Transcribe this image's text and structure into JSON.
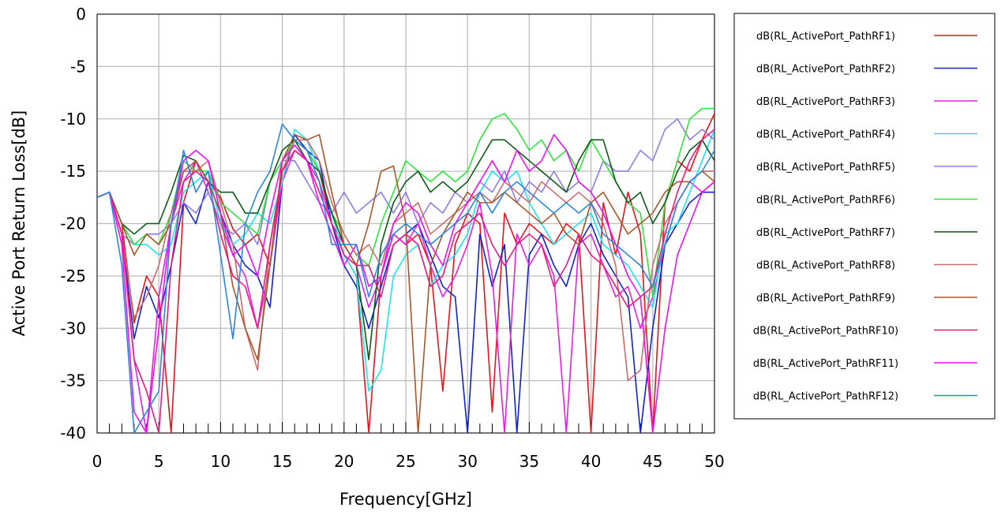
{
  "chart_data": {
    "type": "line",
    "title": "",
    "xlabel": "Frequency[GHz]",
    "ylabel": "Active Port Return Loss[dB]",
    "xlim": [
      0,
      50
    ],
    "ylim": [
      -40,
      0
    ],
    "xticks": [
      0,
      5,
      10,
      15,
      20,
      25,
      30,
      35,
      40,
      45,
      50
    ],
    "yticks": [
      0,
      -5,
      -10,
      -15,
      -20,
      -25,
      -30,
      -35,
      -40
    ],
    "grid": true,
    "legend_position": "right",
    "series": [
      {
        "name": "dB(RL_ActivePort_PathRF1)",
        "color": "#e8131b",
        "x": [
          0,
          1,
          2,
          3,
          4,
          5,
          6,
          7,
          8,
          9,
          10,
          11,
          12,
          13,
          14,
          15,
          16,
          17,
          18,
          19,
          20,
          21,
          22,
          23,
          24,
          25,
          26,
          27,
          28,
          29,
          30,
          31,
          32,
          33,
          34,
          35,
          36,
          37,
          38,
          39,
          40,
          41,
          42,
          43,
          44,
          45,
          46,
          47,
          48,
          49,
          50
        ],
        "y": [
          -17.5,
          -17,
          -20,
          -29.5,
          -25,
          -27,
          -40,
          -18,
          -14,
          -16,
          -17.5,
          -20.5,
          -22,
          -21,
          -24,
          -15,
          -12,
          -13,
          -15,
          -20,
          -23,
          -25,
          -40,
          -25,
          -21,
          -22,
          -21,
          -24,
          -36,
          -22,
          -19,
          -20,
          -38,
          -19,
          -22,
          -20,
          -21,
          -22,
          -20,
          -21,
          -40,
          -18,
          -23,
          -17,
          -21,
          -40,
          -18,
          -14,
          -15,
          -12,
          -9.5
        ]
      },
      {
        "name": "dB(RL_ActivePort_PathRF2)",
        "color": "#1022c8",
        "x": [
          0,
          1,
          2,
          3,
          4,
          5,
          6,
          7,
          8,
          9,
          10,
          11,
          12,
          13,
          14,
          15,
          16,
          17,
          18,
          19,
          20,
          21,
          22,
          23,
          24,
          25,
          26,
          27,
          28,
          29,
          30,
          31,
          32,
          33,
          34,
          35,
          36,
          37,
          38,
          39,
          40,
          41,
          42,
          43,
          44,
          45,
          46,
          47,
          48,
          49,
          50
        ],
        "y": [
          -17.5,
          -17,
          -21,
          -31,
          -26,
          -29,
          -24,
          -18,
          -20,
          -16,
          -19,
          -22,
          -24,
          -25,
          -28,
          -16,
          -11.5,
          -13,
          -14,
          -20,
          -24,
          -26,
          -30,
          -26,
          -22,
          -21,
          -20,
          -23,
          -26,
          -27,
          -40,
          -21,
          -26,
          -22,
          -40,
          -23,
          -21,
          -24,
          -26,
          -22,
          -20,
          -23,
          -25,
          -27,
          -40,
          -30,
          -22,
          -20,
          -18,
          -17,
          -17
        ]
      },
      {
        "name": "dB(RL_ActivePort_PathRF3)",
        "color": "#e91ee0",
        "x": [
          0,
          1,
          2,
          3,
          4,
          5,
          6,
          7,
          8,
          9,
          10,
          11,
          12,
          13,
          14,
          15,
          16,
          17,
          18,
          19,
          20,
          21,
          22,
          23,
          24,
          25,
          26,
          27,
          28,
          29,
          30,
          31,
          32,
          33,
          34,
          35,
          36,
          37,
          38,
          39,
          40,
          41,
          42,
          43,
          44,
          45,
          46,
          47,
          48,
          49,
          50
        ],
        "y": [
          -17.5,
          -17,
          -21,
          -33,
          -40,
          -27,
          -20,
          -16,
          -14,
          -17,
          -20,
          -23,
          -25,
          -30,
          -24,
          -16,
          -13,
          -14,
          -16,
          -20,
          -22,
          -24,
          -28,
          -25,
          -21,
          -22,
          -20,
          -24,
          -27,
          -25,
          -22,
          -18,
          -25,
          -40,
          -21,
          -24,
          -22,
          -25,
          -40,
          -22,
          -21,
          -24,
          -27,
          -26,
          -30,
          -27,
          -22,
          -18,
          -16,
          -17,
          -16
        ]
      },
      {
        "name": "dB(RL_ActivePort_PathRF4)",
        "color": "#19e6ef",
        "x": [
          0,
          1,
          2,
          3,
          4,
          5,
          6,
          7,
          8,
          9,
          10,
          11,
          12,
          13,
          14,
          15,
          16,
          17,
          18,
          19,
          20,
          21,
          22,
          23,
          24,
          25,
          26,
          27,
          28,
          29,
          30,
          31,
          32,
          33,
          34,
          35,
          36,
          37,
          38,
          39,
          40,
          41,
          42,
          43,
          44,
          45,
          46,
          47,
          48,
          49,
          50
        ],
        "y": [
          -17.5,
          -17,
          -20,
          -22,
          -22,
          -23,
          -22,
          -17,
          -16,
          -15,
          -20,
          -22,
          -21,
          -19,
          -20,
          -16,
          -11,
          -12,
          -15,
          -19,
          -23,
          -25,
          -36,
          -34,
          -25,
          -23,
          -22,
          -26,
          -24,
          -23,
          -21,
          -17,
          -15,
          -16,
          -15,
          -18,
          -20,
          -22,
          -21,
          -20,
          -19,
          -22,
          -23,
          -24,
          -26,
          -28,
          -21,
          -20,
          -17,
          -14,
          -11
        ]
      },
      {
        "name": "dB(RL_ActivePort_PathRF5)",
        "color": "#8f7be8",
        "x": [
          0,
          1,
          2,
          3,
          4,
          5,
          6,
          7,
          8,
          9,
          10,
          11,
          12,
          13,
          14,
          15,
          16,
          17,
          18,
          19,
          20,
          21,
          22,
          23,
          24,
          25,
          26,
          27,
          28,
          29,
          30,
          31,
          32,
          33,
          34,
          35,
          36,
          37,
          38,
          39,
          40,
          41,
          42,
          43,
          44,
          45,
          46,
          47,
          48,
          49,
          50
        ],
        "y": [
          -17.5,
          -17,
          -21,
          -22,
          -21,
          -21,
          -20,
          -18,
          -19,
          -17,
          -20,
          -21,
          -20,
          -22,
          -16,
          -14,
          -14,
          -16,
          -18,
          -19,
          -17,
          -19,
          -18,
          -17,
          -19,
          -17,
          -20,
          -18,
          -19,
          -17,
          -18,
          -16,
          -17,
          -15,
          -18,
          -16,
          -17,
          -15,
          -17,
          -16,
          -17,
          -14,
          -15,
          -15,
          -13,
          -14,
          -11,
          -10,
          -12,
          -11,
          -12
        ]
      },
      {
        "name": "dB(RL_ActivePort_PathRF6)",
        "color": "#2fe43c",
        "x": [
          0,
          1,
          2,
          3,
          4,
          5,
          6,
          7,
          8,
          9,
          10,
          11,
          12,
          13,
          14,
          15,
          16,
          17,
          18,
          19,
          20,
          21,
          22,
          23,
          24,
          25,
          26,
          27,
          28,
          29,
          30,
          31,
          32,
          33,
          34,
          35,
          36,
          37,
          38,
          39,
          40,
          41,
          42,
          43,
          44,
          45,
          46,
          47,
          48,
          49,
          50
        ],
        "y": [
          -17.5,
          -17,
          -20,
          -22,
          -21,
          -22,
          -19,
          -14,
          -15,
          -15,
          -18,
          -19,
          -20,
          -21,
          -16,
          -14,
          -12,
          -13,
          -15,
          -19,
          -21,
          -23,
          -24,
          -20,
          -17,
          -14,
          -15,
          -16,
          -15,
          -16,
          -15,
          -12,
          -10,
          -9.5,
          -11,
          -13,
          -12,
          -14,
          -13,
          -15,
          -12,
          -14,
          -16,
          -18,
          -19,
          -27,
          -18,
          -14,
          -10,
          -9,
          -9
        ]
      },
      {
        "name": "dB(RL_ActivePort_PathRF7)",
        "color": "#0d5a18",
        "x": [
          0,
          1,
          2,
          3,
          4,
          5,
          6,
          7,
          8,
          9,
          10,
          11,
          12,
          13,
          14,
          15,
          16,
          17,
          18,
          19,
          20,
          21,
          22,
          23,
          24,
          25,
          26,
          27,
          28,
          29,
          30,
          31,
          32,
          33,
          34,
          35,
          36,
          37,
          38,
          39,
          40,
          41,
          42,
          43,
          44,
          45,
          46,
          47,
          48,
          49,
          50
        ],
        "y": [
          -17.5,
          -17,
          -20,
          -21,
          -20,
          -20,
          -17,
          -13.5,
          -14,
          -16,
          -17,
          -17,
          -19,
          -19,
          -16,
          -13,
          -12,
          -14,
          -15,
          -19,
          -22,
          -24,
          -33,
          -22,
          -18,
          -16,
          -15,
          -17,
          -16,
          -17,
          -16,
          -14,
          -12,
          -12,
          -13,
          -14,
          -15,
          -16,
          -17,
          -14,
          -12,
          -12,
          -16,
          -18,
          -17,
          -20,
          -18,
          -15,
          -13,
          -12,
          -14
        ]
      },
      {
        "name": "dB(RL_ActivePort_PathRF8)",
        "color": "#cc6b6b",
        "x": [
          0,
          1,
          2,
          3,
          4,
          5,
          6,
          7,
          8,
          9,
          10,
          11,
          12,
          13,
          14,
          15,
          16,
          17,
          18,
          19,
          20,
          21,
          22,
          23,
          24,
          25,
          26,
          27,
          28,
          29,
          30,
          31,
          32,
          33,
          34,
          35,
          36,
          37,
          38,
          39,
          40,
          41,
          42,
          43,
          44,
          45,
          46,
          47,
          48,
          49,
          50
        ],
        "y": [
          -17.5,
          -17,
          -21,
          -29,
          -27,
          -24,
          -19,
          -15,
          -15,
          -14,
          -18,
          -22,
          -30,
          -34,
          -22,
          -15,
          -12,
          -12,
          -14,
          -18,
          -21,
          -23,
          -22,
          -24,
          -20,
          -19,
          -18,
          -21,
          -20,
          -19,
          -18,
          -17,
          -18,
          -16,
          -17,
          -18,
          -16,
          -17,
          -18,
          -17,
          -18,
          -20,
          -24,
          -35,
          -34,
          -24,
          -20,
          -18,
          -16,
          -15,
          -15
        ]
      },
      {
        "name": "dB(RL_ActivePort_PathRF9)",
        "color": "#a8572a",
        "x": [
          0,
          1,
          2,
          3,
          4,
          5,
          6,
          7,
          8,
          9,
          10,
          11,
          12,
          13,
          14,
          15,
          16,
          17,
          18,
          19,
          20,
          21,
          22,
          23,
          24,
          25,
          26,
          27,
          28,
          29,
          30,
          31,
          32,
          33,
          34,
          35,
          36,
          37,
          38,
          39,
          40,
          41,
          42,
          43,
          44,
          45,
          46,
          47,
          48,
          49,
          50
        ],
        "y": [
          -17.5,
          -17,
          -20,
          -23,
          -21,
          -22,
          -20,
          -15,
          -14,
          -16,
          -19,
          -26,
          -30,
          -33,
          -24,
          -14,
          -11.5,
          -12,
          -11.5,
          -17,
          -22,
          -24,
          -20,
          -15,
          -14.5,
          -20,
          -40,
          -24,
          -21,
          -19,
          -17,
          -18,
          -18,
          -17,
          -18,
          -19,
          -20,
          -19,
          -21,
          -22,
          -18,
          -17,
          -19,
          -21,
          -20,
          -19,
          -17,
          -16,
          -16,
          -15,
          -16
        ]
      },
      {
        "name": "dB(RL_ActivePort_PathRF10)",
        "color": "#ed1781",
        "x": [
          0,
          1,
          2,
          3,
          4,
          5,
          6,
          7,
          8,
          9,
          10,
          11,
          12,
          13,
          14,
          15,
          16,
          17,
          18,
          19,
          20,
          21,
          22,
          23,
          24,
          25,
          26,
          27,
          28,
          29,
          30,
          31,
          32,
          33,
          34,
          35,
          36,
          37,
          38,
          39,
          40,
          41,
          42,
          43,
          44,
          45,
          46,
          47,
          48,
          49,
          50
        ],
        "y": [
          -17.5,
          -17,
          -21,
          -33,
          -36,
          -40,
          -24,
          -16,
          -15,
          -16,
          -21,
          -25,
          -26,
          -30,
          -22,
          -15,
          -13,
          -14,
          -17,
          -20,
          -23,
          -24,
          -24,
          -27,
          -22,
          -21,
          -22,
          -26,
          -25,
          -21,
          -20,
          -19,
          -22,
          -24,
          -22,
          -21,
          -22,
          -26,
          -24,
          -21,
          -23,
          -24,
          -26,
          -28,
          -27,
          -26,
          -21,
          -17,
          -14,
          -12,
          -11
        ]
      },
      {
        "name": "dB(RL_ActivePort_PathRF11)",
        "color": "#f00ff0",
        "x": [
          0,
          1,
          2,
          3,
          4,
          5,
          6,
          7,
          8,
          9,
          10,
          11,
          12,
          13,
          14,
          15,
          16,
          17,
          18,
          19,
          20,
          21,
          22,
          23,
          24,
          25,
          26,
          27,
          28,
          29,
          30,
          31,
          32,
          33,
          34,
          35,
          36,
          37,
          38,
          39,
          40,
          41,
          42,
          43,
          44,
          45,
          46,
          47,
          48,
          49,
          50
        ],
        "y": [
          -17.5,
          -17,
          -22,
          -38,
          -40,
          -30,
          -20,
          -14,
          -13,
          -14,
          -19,
          -23,
          -22,
          -25,
          -19,
          -14,
          -12.5,
          -14,
          -18,
          -21,
          -24,
          -22,
          -26,
          -25,
          -20,
          -18,
          -19,
          -22,
          -24,
          -20,
          -18,
          -16,
          -14,
          -16,
          -13,
          -15,
          -14,
          -11.5,
          -13,
          -16,
          -17,
          -19,
          -22,
          -25,
          -27,
          -40,
          -30,
          -23,
          -20,
          -17,
          -16
        ]
      },
      {
        "name": "dB(RL_ActivePort_PathRF12)",
        "color": "#2a86e0",
        "x": [
          0,
          1,
          2,
          3,
          4,
          5,
          6,
          7,
          8,
          9,
          10,
          11,
          12,
          13,
          14,
          15,
          16,
          17,
          18,
          19,
          20,
          21,
          22,
          23,
          24,
          25,
          26,
          27,
          28,
          29,
          30,
          31,
          32,
          33,
          34,
          35,
          36,
          37,
          38,
          39,
          40,
          41,
          42,
          43,
          44,
          45,
          46,
          47,
          48,
          49,
          50
        ],
        "y": [
          -17.5,
          -17,
          -24,
          -40,
          -38,
          -36,
          -20,
          -13,
          -17,
          -15,
          -23,
          -31,
          -20,
          -17,
          -15,
          -10.5,
          -12,
          -13,
          -16,
          -22,
          -22,
          -22,
          -27,
          -23,
          -21,
          -20,
          -21,
          -22,
          -21,
          -20,
          -19,
          -17,
          -19,
          -17,
          -16,
          -17,
          -18,
          -19,
          -18,
          -19,
          -18,
          -21,
          -22,
          -23,
          -24,
          -26,
          -22,
          -18,
          -16,
          -15,
          -13
        ]
      }
    ]
  }
}
